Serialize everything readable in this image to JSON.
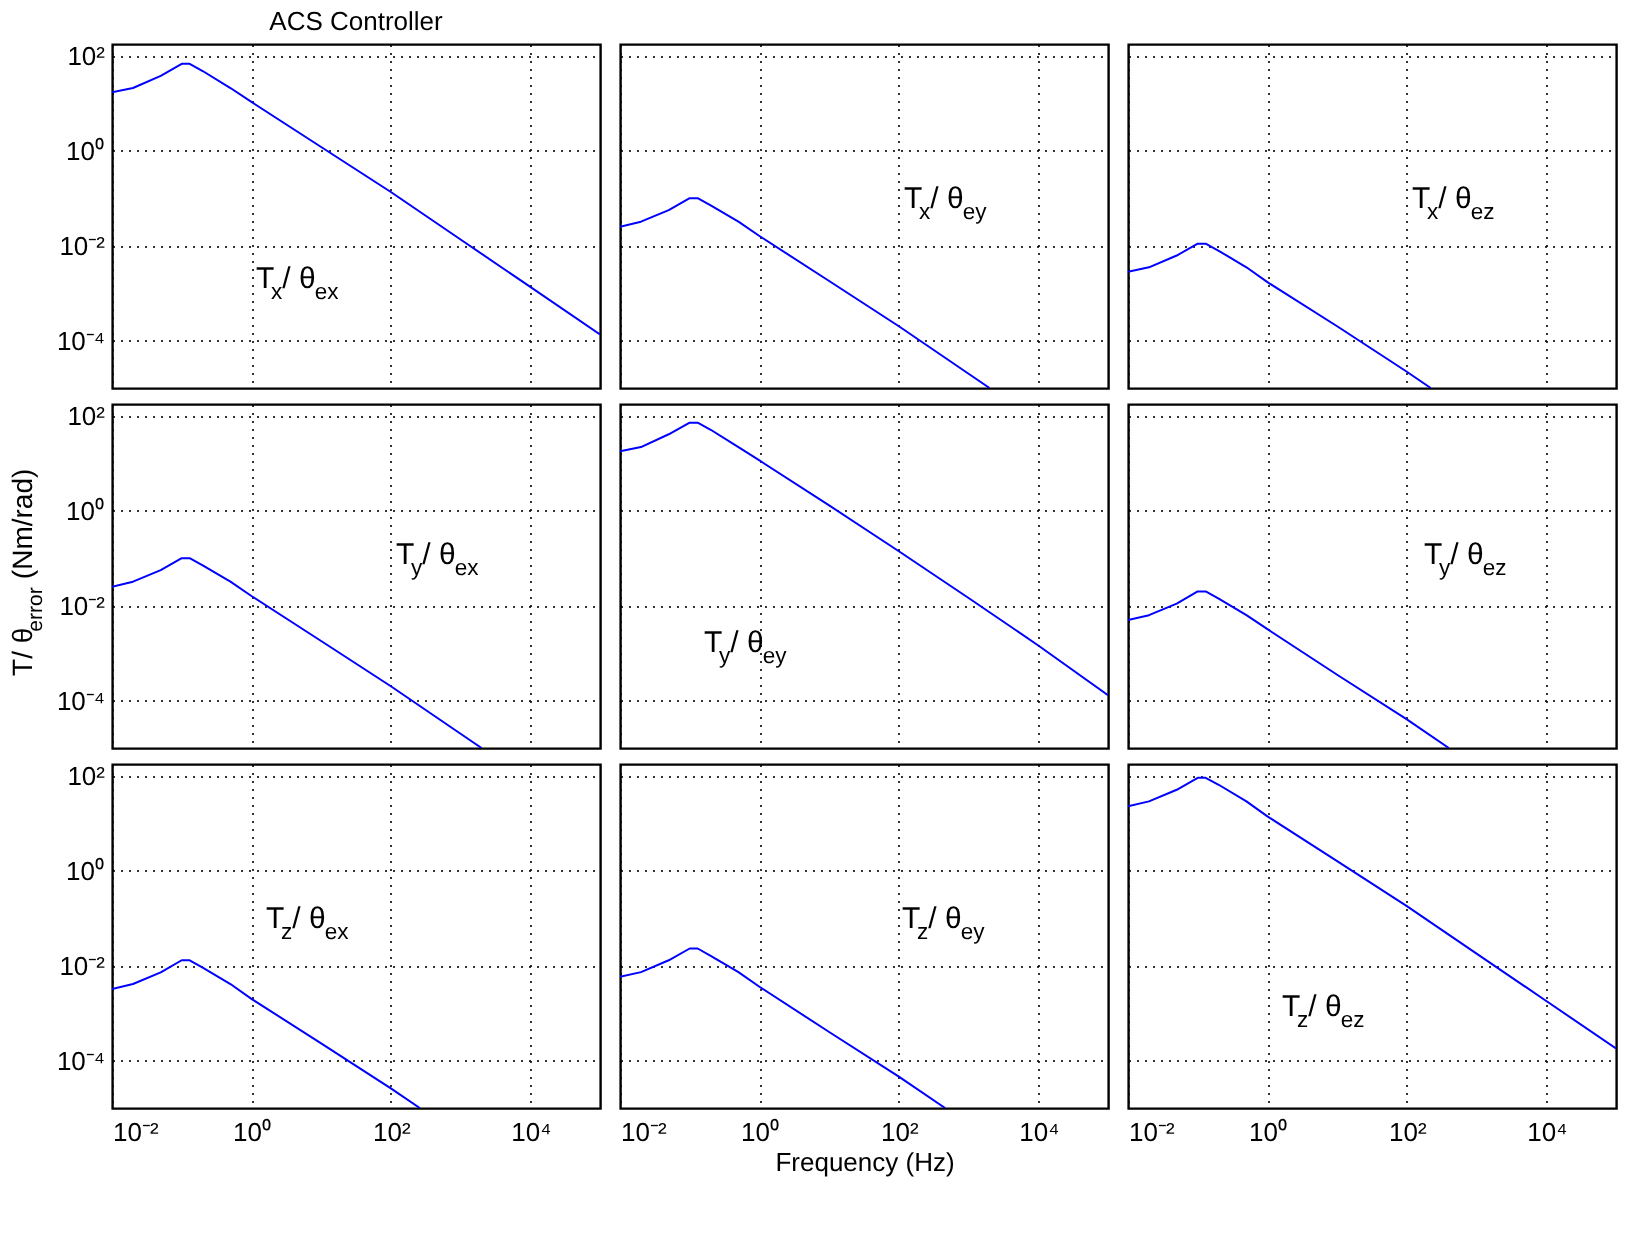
{
  "chart_data": [
    {
      "type": "line",
      "title": "ACS Controller",
      "x": [
        0.01,
        0.02,
        0.05,
        0.1,
        0.13,
        0.2,
        0.5,
        1,
        10,
        100,
        1000,
        10000,
        100000
      ],
      "values": [
        17,
        21,
        38,
        68,
        68,
        48,
        21,
        10.7,
        1.2,
        0.135,
        0.0135,
        0.00135,
        0.000135
      ],
      "color": "#0000ff",
      "xlim": [
        0.01,
        100000
      ],
      "ylim": [
        1e-05,
        178
      ],
      "xticks": [
        {
          "value": 0.01,
          "label": null
        },
        {
          "value": 1,
          "label": null
        },
        {
          "value": 100,
          "label": null
        },
        {
          "value": 10000,
          "label": null
        }
      ],
      "yticks": [
        {
          "value": 100,
          "label": "10²"
        },
        {
          "value": 1,
          "label": "10⁰"
        },
        {
          "value": 0.01,
          "label": "10⁻²"
        },
        {
          "value": 0.0001,
          "label": "10⁻⁴"
        }
      ],
      "log": "xy",
      "grid": true,
      "tick_labels": "y",
      "annotations": [
        "T$_{x}$/ θ$_{ex}$"
      ]
    },
    {
      "type": "line",
      "x": [
        0.01,
        0.02,
        0.05,
        0.1,
        0.13,
        0.2,
        0.5,
        1,
        10,
        100,
        1000,
        2000
      ],
      "values": [
        0.025,
        0.032,
        0.056,
        0.1,
        0.1,
        0.071,
        0.032,
        0.016,
        0.0018,
        0.0002,
        2e-05,
        1e-05
      ],
      "color": "#0000ff",
      "xlim": [
        0.01,
        100000
      ],
      "ylim": [
        1e-05,
        178
      ],
      "xticks": [
        {
          "value": 0.01,
          "label": null
        },
        {
          "value": 1,
          "label": null
        },
        {
          "value": 100,
          "label": null
        },
        {
          "value": 10000,
          "label": null
        }
      ],
      "yticks": [
        {
          "value": 100,
          "label": null
        },
        {
          "value": 1,
          "label": null
        },
        {
          "value": 0.01,
          "label": null
        },
        {
          "value": 0.0001,
          "label": null
        }
      ],
      "log": "xy",
      "grid": true,
      "tick_labels": false,
      "annotations": [
        "T$_{x}$/ θ$_{ey}$"
      ]
    },
    {
      "type": "line",
      "x": [
        0.01,
        0.02,
        0.05,
        0.1,
        0.13,
        0.2,
        0.5,
        1,
        10,
        100,
        220
      ],
      "values": [
        0.0028,
        0.0035,
        0.0062,
        0.011,
        0.011,
        0.0078,
        0.0035,
        0.0017,
        0.0002,
        2.2e-05,
        1e-05
      ],
      "color": "#0000ff",
      "xlim": [
        0.01,
        100000
      ],
      "ylim": [
        1e-05,
        178
      ],
      "xticks": [
        {
          "value": 0.01,
          "label": null
        },
        {
          "value": 1,
          "label": null
        },
        {
          "value": 100,
          "label": null
        },
        {
          "value": 10000,
          "label": null
        }
      ],
      "yticks": [
        {
          "value": 100,
          "label": null
        },
        {
          "value": 1,
          "label": null
        },
        {
          "value": 0.01,
          "label": null
        },
        {
          "value": 0.0001,
          "label": null
        }
      ],
      "log": "xy",
      "grid": true,
      "tick_labels": false,
      "annotations": [
        "T$_{x}$/ θ$_{ez}$"
      ]
    },
    {
      "type": "line",
      "ylabel": "T/ θ$_{error}$ (Nm/rad)",
      "x": [
        0.01,
        0.02,
        0.05,
        0.1,
        0.13,
        0.2,
        0.5,
        1,
        10,
        100,
        1000,
        2000
      ],
      "values": [
        0.025,
        0.032,
        0.056,
        0.1,
        0.1,
        0.071,
        0.032,
        0.016,
        0.0018,
        0.0002,
        2e-05,
        1e-05
      ],
      "color": "#0000ff",
      "xlim": [
        0.01,
        100000
      ],
      "ylim": [
        1e-05,
        178
      ],
      "xticks": [
        {
          "value": 0.01,
          "label": null
        },
        {
          "value": 1,
          "label": null
        },
        {
          "value": 100,
          "label": null
        },
        {
          "value": 10000,
          "label": null
        }
      ],
      "yticks": [
        {
          "value": 100,
          "label": "10²"
        },
        {
          "value": 1,
          "label": "10⁰"
        },
        {
          "value": 0.01,
          "label": "10⁻²"
        },
        {
          "value": 0.0001,
          "label": "10⁻⁴"
        }
      ],
      "log": "xy",
      "grid": true,
      "tick_labels": "y",
      "annotations": [
        "T$_{y}$/ θ$_{ex}$"
      ]
    },
    {
      "type": "line",
      "x": [
        0.01,
        0.02,
        0.05,
        0.1,
        0.13,
        0.2,
        0.5,
        1,
        10,
        100,
        1000,
        10000,
        100000
      ],
      "values": [
        18,
        22,
        41,
        72,
        72,
        51,
        22,
        11.5,
        1.3,
        0.14,
        0.0145,
        0.00145,
        0.00013
      ],
      "color": "#0000ff",
      "xlim": [
        0.01,
        100000
      ],
      "ylim": [
        1e-05,
        178
      ],
      "xticks": [
        {
          "value": 0.01,
          "label": null
        },
        {
          "value": 1,
          "label": null
        },
        {
          "value": 100,
          "label": null
        },
        {
          "value": 10000,
          "label": null
        }
      ],
      "yticks": [
        {
          "value": 100,
          "label": null
        },
        {
          "value": 1,
          "label": null
        },
        {
          "value": 0.01,
          "label": null
        },
        {
          "value": 0.0001,
          "label": null
        }
      ],
      "log": "xy",
      "grid": true,
      "tick_labels": false,
      "annotations": [
        "T$_{y}$/ θ$_{ey}$"
      ]
    },
    {
      "type": "line",
      "x": [
        0.01,
        0.02,
        0.05,
        0.1,
        0.13,
        0.2,
        0.5,
        1,
        10,
        100,
        400
      ],
      "values": [
        0.005,
        0.0063,
        0.011,
        0.02,
        0.02,
        0.014,
        0.0063,
        0.0032,
        0.00035,
        4e-05,
        1e-05
      ],
      "color": "#0000ff",
      "xlim": [
        0.01,
        100000
      ],
      "ylim": [
        1e-05,
        178
      ],
      "xticks": [
        {
          "value": 0.01,
          "label": null
        },
        {
          "value": 1,
          "label": null
        },
        {
          "value": 100,
          "label": null
        },
        {
          "value": 10000,
          "label": null
        }
      ],
      "yticks": [
        {
          "value": 100,
          "label": null
        },
        {
          "value": 1,
          "label": null
        },
        {
          "value": 0.01,
          "label": null
        },
        {
          "value": 0.0001,
          "label": null
        }
      ],
      "log": "xy",
      "grid": true,
      "tick_labels": false,
      "annotations": [
        "T$_{y}$/ θ$_{ez}$"
      ]
    },
    {
      "type": "line",
      "x": [
        0.01,
        0.02,
        0.05,
        0.1,
        0.13,
        0.2,
        0.5,
        1,
        10,
        100,
        260
      ],
      "values": [
        0.0032,
        0.0041,
        0.0072,
        0.013,
        0.013,
        0.0091,
        0.0041,
        0.002,
        0.00023,
        2.6e-05,
        1e-05
      ],
      "color": "#0000ff",
      "xlim": [
        0.01,
        100000
      ],
      "ylim": [
        1e-05,
        178
      ],
      "xticks": [
        {
          "value": 0.01,
          "label": "10⁻²"
        },
        {
          "value": 1,
          "label": "10⁰"
        },
        {
          "value": 100,
          "label": "10²"
        },
        {
          "value": 10000,
          "label": "10⁴"
        }
      ],
      "yticks": [
        {
          "value": 100,
          "label": "10²"
        },
        {
          "value": 1,
          "label": "10⁰"
        },
        {
          "value": 0.01,
          "label": "10⁻²"
        },
        {
          "value": 0.0001,
          "label": "10⁻⁴"
        }
      ],
      "log": "xy",
      "grid": true,
      "annotations": [
        "T$_{z}$/ θ$_{ex}$"
      ]
    },
    {
      "type": "line",
      "xlabel": "Frequency (Hz)",
      "x": [
        0.01,
        0.02,
        0.05,
        0.1,
        0.13,
        0.2,
        0.5,
        1,
        10,
        100,
        460
      ],
      "values": [
        0.0058,
        0.0073,
        0.013,
        0.023,
        0.023,
        0.016,
        0.0073,
        0.0036,
        0.0004,
        4.6e-05,
        1e-05
      ],
      "color": "#0000ff",
      "xlim": [
        0.01,
        100000
      ],
      "ylim": [
        1e-05,
        178
      ],
      "xticks": [
        {
          "value": 0.01,
          "label": "10⁻²"
        },
        {
          "value": 1,
          "label": "10⁰"
        },
        {
          "value": 100,
          "label": "10²"
        },
        {
          "value": 10000,
          "label": "10⁴"
        }
      ],
      "yticks": [
        {
          "value": 100,
          "label": null
        },
        {
          "value": 1,
          "label": null
        },
        {
          "value": 0.01,
          "label": null
        },
        {
          "value": 0.0001,
          "label": null
        }
      ],
      "log": "xy",
      "grid": true,
      "tick_labels": "x",
      "annotations": [
        "T$_{z}$/ θ$_{ey}$"
      ]
    },
    {
      "type": "line",
      "x": [
        0.01,
        0.02,
        0.05,
        0.1,
        0.13,
        0.2,
        0.5,
        1,
        10,
        100,
        1000,
        10000,
        100000
      ],
      "values": [
        23,
        29,
        51,
        91,
        91,
        65,
        29,
        14,
        1.6,
        0.18,
        0.018,
        0.0018,
        0.00018
      ],
      "color": "#0000ff",
      "xlim": [
        0.01,
        100000
      ],
      "ylim": [
        1e-05,
        178
      ],
      "xticks": [
        {
          "value": 0.01,
          "label": "10⁻²"
        },
        {
          "value": 1,
          "label": "10⁰"
        },
        {
          "value": 100,
          "label": "10²"
        },
        {
          "value": 10000,
          "label": "10⁴"
        }
      ],
      "yticks": [
        {
          "value": 100,
          "label": null
        },
        {
          "value": 1,
          "label": null
        },
        {
          "value": 0.01,
          "label": null
        },
        {
          "value": 0.0001,
          "label": null
        }
      ],
      "log": "xy",
      "grid": true,
      "tick_labels": "x",
      "annotations": [
        "T$_{z}$/ θ$_{ez}$"
      ]
    }
  ]
}
